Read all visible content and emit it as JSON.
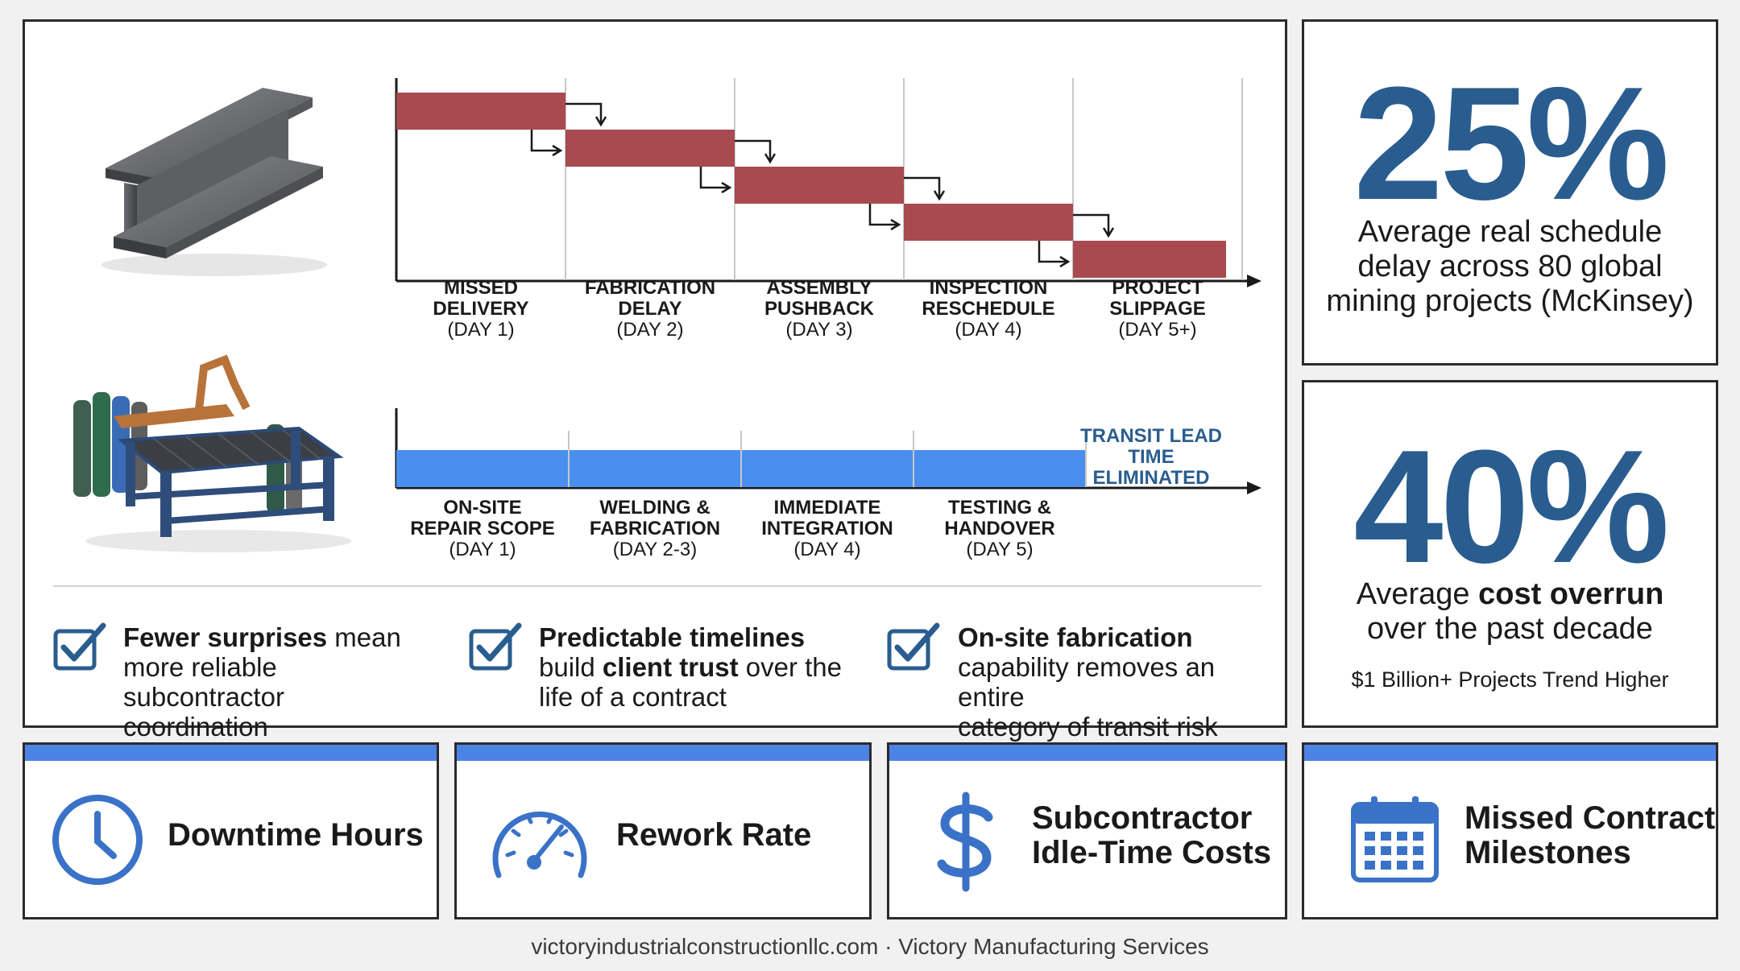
{
  "chart_data": [
    {
      "type": "gantt",
      "stages": [
        {
          "label_line1": "MISSED",
          "label_line2": "DELIVERY",
          "day": "(DAY 1)"
        },
        {
          "label_line1": "FABRICATION",
          "label_line2": "DELAY",
          "day": "(DAY 2)"
        },
        {
          "label_line1": "ASSEMBLY",
          "label_line2": "PUSHBACK",
          "day": "(DAY 3)"
        },
        {
          "label_line1": "INSPECTION",
          "label_line2": "RESCHEDULE",
          "day": "(DAY 4)"
        },
        {
          "label_line1": "PROJECT",
          "label_line2": "SLIPPAGE",
          "day": "(DAY 5+)"
        }
      ],
      "bar_color": "#a84a4f"
    },
    {
      "type": "gantt",
      "stages": [
        {
          "label_line1": "ON-SITE",
          "label_line2": "REPAIR SCOPE",
          "day": "(DAY 1)"
        },
        {
          "label_line1": "WELDING &",
          "label_line2": "FABRICATION",
          "day": "(DAY 2-3)"
        },
        {
          "label_line1": "IMMEDIATE",
          "label_line2": "INTEGRATION",
          "day": "(DAY 4)"
        },
        {
          "label_line1": "TESTING &",
          "label_line2": "HANDOVER",
          "day": "(DAY 5)"
        }
      ],
      "annotation_line1": "TRANSIT LEAD",
      "annotation_line2": "TIME ELIMINATED",
      "bar_color": "#4a8ff0"
    }
  ],
  "checks": [
    {
      "bold": "Fewer surprises",
      "rest_1": " mean",
      "line2": "more reliable subcontractor",
      "line3": "coordination"
    },
    {
      "bold": "Predictable timelines",
      "line2_a": "build ",
      "line2_b": "client trust",
      "line2_c": " over the",
      "line3": "life of a contract"
    },
    {
      "bold": "On-site fabrication",
      "line2": "capability removes an entire",
      "line3": "category of transit risk"
    }
  ],
  "stats": {
    "top": {
      "value": "25%",
      "line1": "Average real schedule",
      "line2": "delay across 80 global",
      "line3": "mining projects (McKinsey)"
    },
    "bottom": {
      "value": "40%",
      "line1_a": "Average ",
      "line1_b": "cost overrun",
      "line2": "over the past decade",
      "note": "$1 Billion+ Projects Trend Higher"
    }
  },
  "metrics": [
    {
      "icon": "clock-icon",
      "line1": "Downtime Hours",
      "line2": ""
    },
    {
      "icon": "speedometer-icon",
      "line1": "Rework Rate",
      "line2": ""
    },
    {
      "icon": "dollar-icon",
      "line1": "Subcontractor",
      "line2": "Idle-Time Costs"
    },
    {
      "icon": "calendar-icon",
      "line1": "Missed Contract",
      "line2": "Milestones"
    }
  ],
  "footer": "victoryindustrialconstructionllc.com · Victory Manufacturing Services",
  "colors": {
    "accent_blue": "#4e83e6",
    "stat_blue": "#2a5d8f",
    "delay_red": "#a84a4f"
  }
}
